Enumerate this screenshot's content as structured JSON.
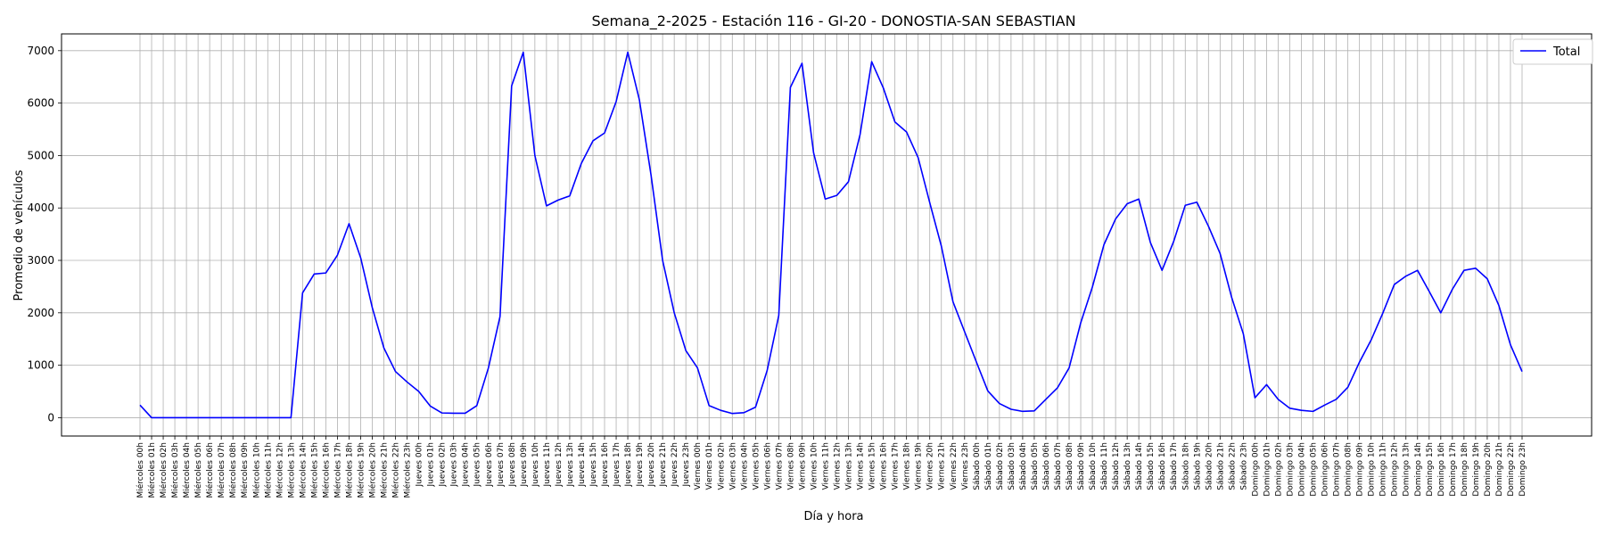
{
  "chart_data": {
    "type": "line",
    "title": "Semana_2-2025 - Estación 116 - GI-20  - DONOSTIA-SAN SEBASTIAN",
    "xlabel": "Día y hora",
    "ylabel": "Promedio de vehículos",
    "ylim": [
      -350,
      7320
    ],
    "yticks": [
      0,
      1000,
      2000,
      3000,
      4000,
      5000,
      6000,
      7000
    ],
    "grid": true,
    "legend_position": "top-right",
    "line_color": "#0000ff",
    "categories": [
      "Miércoles 00h",
      "Miércoles 01h",
      "Miércoles 02h",
      "Miércoles 03h",
      "Miércoles 04h",
      "Miércoles 05h",
      "Miércoles 06h",
      "Miércoles 07h",
      "Miércoles 08h",
      "Miércoles 09h",
      "Miércoles 10h",
      "Miércoles 11h",
      "Miércoles 12h",
      "Miércoles 13h",
      "Miércoles 14h",
      "Miércoles 15h",
      "Miércoles 16h",
      "Miércoles 17h",
      "Miércoles 18h",
      "Miércoles 19h",
      "Miércoles 20h",
      "Miércoles 21h",
      "Miércoles 22h",
      "Miércoles 23h",
      "Jueves 00h",
      "Jueves 01h",
      "Jueves 02h",
      "Jueves 03h",
      "Jueves 04h",
      "Jueves 05h",
      "Jueves 06h",
      "Jueves 07h",
      "Jueves 08h",
      "Jueves 09h",
      "Jueves 10h",
      "Jueves 11h",
      "Jueves 12h",
      "Jueves 13h",
      "Jueves 14h",
      "Jueves 15h",
      "Jueves 16h",
      "Jueves 17h",
      "Jueves 18h",
      "Jueves 19h",
      "Jueves 20h",
      "Jueves 21h",
      "Jueves 22h",
      "Jueves 23h",
      "Viernes 00h",
      "Viernes 01h",
      "Viernes 02h",
      "Viernes 03h",
      "Viernes 04h",
      "Viernes 05h",
      "Viernes 06h",
      "Viernes 07h",
      "Viernes 08h",
      "Viernes 09h",
      "Viernes 10h",
      "Viernes 11h",
      "Viernes 12h",
      "Viernes 13h",
      "Viernes 14h",
      "Viernes 15h",
      "Viernes 16h",
      "Viernes 17h",
      "Viernes 18h",
      "Viernes 19h",
      "Viernes 20h",
      "Viernes 21h",
      "Viernes 22h",
      "Viernes 23h",
      "Sábado 00h",
      "Sábado 01h",
      "Sábado 02h",
      "Sábado 03h",
      "Sábado 04h",
      "Sábado 05h",
      "Sábado 06h",
      "Sábado 07h",
      "Sábado 08h",
      "Sábado 09h",
      "Sábado 10h",
      "Sábado 11h",
      "Sábado 12h",
      "Sábado 13h",
      "Sábado 14h",
      "Sábado 15h",
      "Sábado 16h",
      "Sábado 17h",
      "Sábado 18h",
      "Sábado 19h",
      "Sábado 20h",
      "Sábado 21h",
      "Sábado 22h",
      "Sábado 23h",
      "Domingo 00h",
      "Domingo 01h",
      "Domingo 02h",
      "Domingo 03h",
      "Domingo 04h",
      "Domingo 05h",
      "Domingo 06h",
      "Domingo 07h",
      "Domingo 08h",
      "Domingo 09h",
      "Domingo 10h",
      "Domingo 11h",
      "Domingo 12h",
      "Domingo 13h",
      "Domingo 14h",
      "Domingo 15h",
      "Domingo 16h",
      "Domingo 17h",
      "Domingo 18h",
      "Domingo 19h",
      "Domingo 20h",
      "Domingo 21h",
      "Domingo 22h",
      "Domingo 23h"
    ],
    "series": [
      {
        "name": "Total",
        "values": [
          240,
          0,
          0,
          0,
          0,
          0,
          0,
          0,
          0,
          0,
          0,
          0,
          0,
          0,
          2380,
          2740,
          2760,
          3100,
          3700,
          3050,
          2100,
          1330,
          880,
          680,
          500,
          220,
          90,
          85,
          85,
          230,
          950,
          1930,
          6330,
          6970,
          5000,
          4040,
          4150,
          4230,
          4850,
          5280,
          5430,
          6030,
          6970,
          6060,
          4630,
          3000,
          2000,
          1280,
          950,
          230,
          140,
          80,
          95,
          200,
          900,
          1950,
          6300,
          6760,
          5050,
          4170,
          4240,
          4500,
          5400,
          6790,
          6290,
          5640,
          5450,
          4960,
          4100,
          3270,
          2210,
          1640,
          1070,
          510,
          270,
          160,
          120,
          130,
          350,
          570,
          950,
          1810,
          2490,
          3300,
          3790,
          4080,
          4170,
          3340,
          2810,
          3360,
          4050,
          4110,
          3650,
          3130,
          2290,
          1600,
          380,
          630,
          350,
          180,
          140,
          120,
          240,
          350,
          580,
          1060,
          1480,
          1990,
          2540,
          2700,
          2810,
          2410,
          2000,
          2450,
          2810,
          2850,
          2650,
          2140,
          1390,
          880
        ]
      }
    ]
  }
}
